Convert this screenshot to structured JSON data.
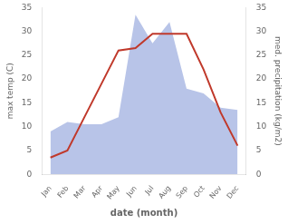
{
  "chart_data": {
    "type": "line",
    "xlabel": "date (month)",
    "ylabel": "max temp (C)",
    "y2label": "med. precipitation (kg/m2)",
    "categories": [
      "Jan",
      "Feb",
      "Mar",
      "Apr",
      "May",
      "Jun",
      "Jul",
      "Aug",
      "Sep",
      "Oct",
      "Nov",
      "Dec"
    ],
    "series": [
      {
        "type": "area",
        "axis": "y2",
        "color": "#b8c4e8",
        "values": [
          9.0,
          11.0,
          10.5,
          10.5,
          12.0,
          33.5,
          27.5,
          32.0,
          18.0,
          17.0,
          14.0,
          13.5
        ]
      },
      {
        "type": "line",
        "color": "#c0392b",
        "values": [
          3.5,
          5.0,
          12.0,
          19.0,
          26.0,
          26.5,
          29.5,
          29.5,
          29.5,
          22.0,
          13.0,
          6.0
        ]
      }
    ],
    "ylim": [
      0,
      35
    ],
    "yticks": [
      0,
      5,
      10,
      15,
      20,
      25,
      30,
      35
    ],
    "y2lim": [
      0,
      35
    ],
    "y2ticks": [
      0,
      5,
      10,
      15,
      20,
      25,
      30,
      35
    ],
    "grid": false
  }
}
